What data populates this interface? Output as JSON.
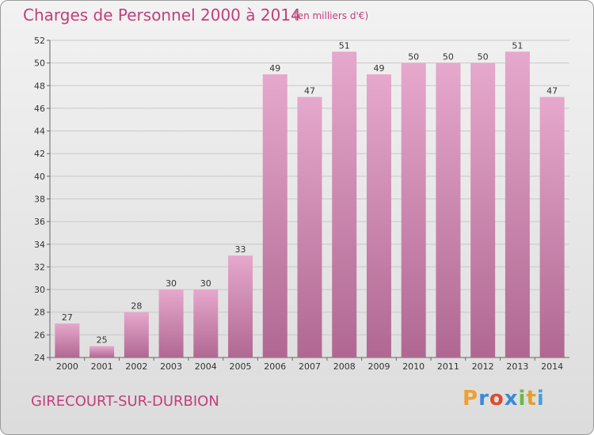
{
  "title": "Charges de Personnel 2000 à 2014",
  "subtitle": "(en milliers d'€)",
  "commune": "GIRECOURT-SUR-DURBION",
  "logo": {
    "text": "Proxiti",
    "colors": [
      "#f0a030",
      "#3a8ad8",
      "#e04a2a",
      "#3a8ad8",
      "#6bb84a",
      "#e0a030",
      "#4aa0d8"
    ]
  },
  "colors": {
    "title": "#c0407a",
    "bar_top": "#e6a8cc",
    "bar_bottom": "#b06892"
  },
  "chart_data": {
    "type": "bar",
    "title": "Charges de Personnel 2000 à 2014",
    "categories": [
      "2000",
      "2001",
      "2002",
      "2003",
      "2004",
      "2005",
      "2006",
      "2007",
      "2008",
      "2009",
      "2010",
      "2011",
      "2012",
      "2013",
      "2014"
    ],
    "values": [
      27,
      25,
      28,
      30,
      30,
      33,
      49,
      47,
      51,
      49,
      50,
      50,
      50,
      51,
      47
    ],
    "ylim": [
      24,
      52
    ],
    "yticks": [
      24,
      26,
      28,
      30,
      32,
      34,
      36,
      38,
      40,
      42,
      44,
      46,
      48,
      50,
      52
    ],
    "grid": true,
    "legend": "none"
  }
}
